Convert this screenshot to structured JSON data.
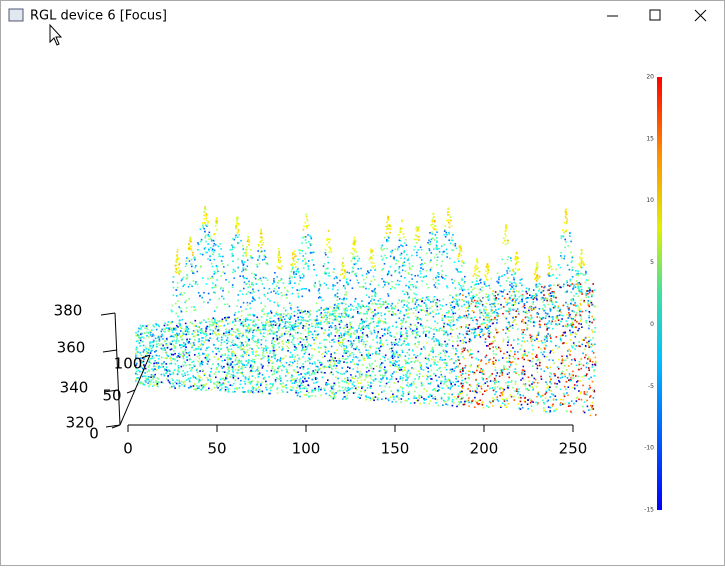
{
  "window": {
    "title": "RGL device 6 [Focus]"
  },
  "axes": {
    "x_ticks": [
      "0",
      "50",
      "100",
      "150",
      "200",
      "250"
    ],
    "y_ticks": [
      "0",
      "50",
      "100"
    ],
    "z_ticks": [
      "320",
      "340",
      "360",
      "380"
    ]
  },
  "colorbar": {
    "ticks": [
      "20",
      "15",
      "10",
      "5",
      "0",
      "-5",
      "-10",
      "-15"
    ]
  }
}
